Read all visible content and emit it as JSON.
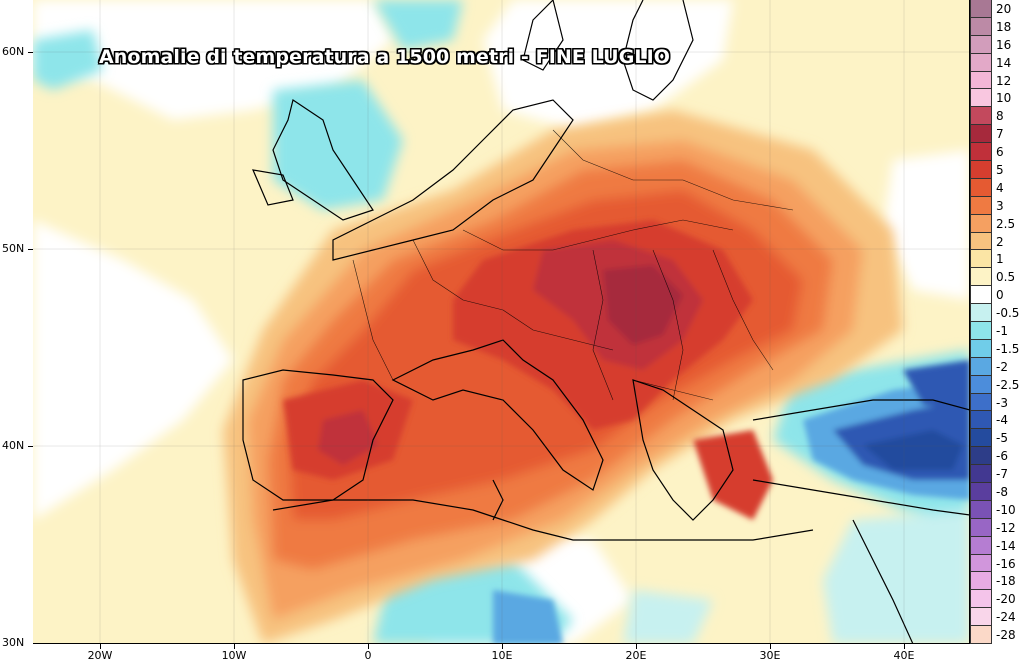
{
  "title": "Anomalie di temperatura a 1500 metri - FINE LUGLIO",
  "latitude_labels": [
    "60N",
    "50N",
    "40N",
    "30N"
  ],
  "longitude_labels": [
    "20W",
    "10W",
    "0",
    "10E",
    "20E",
    "30E",
    "40E"
  ],
  "legend": {
    "labels": [
      "20",
      "18",
      "16",
      "14",
      "12",
      "10",
      "8",
      "7",
      "6",
      "5",
      "4",
      "3",
      "2.5",
      "2",
      "1",
      "0.5",
      "0",
      "-0.5",
      "-1",
      "-1.5",
      "-2",
      "-2.5",
      "-3",
      "-4",
      "-5",
      "-6",
      "-7",
      "-8",
      "-10",
      "-12",
      "-14",
      "-16",
      "-18",
      "-20",
      "-24",
      "-28"
    ],
    "colors": [
      "#a87894",
      "#bc8aa6",
      "#d29dbb",
      "#e3a9c8",
      "#f3b6d6",
      "#f9c7e0",
      "#c3495d",
      "#a6293c",
      "#c0303a",
      "#d63e2f",
      "#e55a32",
      "#ef7a42",
      "#f5a061",
      "#f7c27f",
      "#fbe5a5",
      "#fdf3c6",
      "#ffffff",
      "#c7f1f0",
      "#8ee5ea",
      "#70cde9",
      "#5aa8e2",
      "#4c8ddb",
      "#3d6fc9",
      "#2f58b3",
      "#244b9e",
      "#2d3d88",
      "#423891",
      "#5a3e9e",
      "#7a52b5",
      "#9866c5",
      "#b57dd2",
      "#d196dc",
      "#e7abe3",
      "#f4c4ea",
      "#f9d6ea",
      "#fbd9c8"
    ]
  },
  "palette": {
    "ocean_white": "#ffffff",
    "yellow": "#fbe5a5",
    "pale_yellow": "#fdf3c6",
    "orange_light": "#f7c27f",
    "orange": "#f5a061",
    "orange_dark": "#ef7a42",
    "red_orange": "#e55a32",
    "red": "#d63e2f",
    "dark_red": "#c0303a",
    "crimson": "#a6293c",
    "cyan": "#8ee5ea",
    "light_cyan": "#c7f1f0",
    "blue": "#5aa8e2",
    "dark_blue": "#2f58b3",
    "navy": "#244b9e"
  }
}
